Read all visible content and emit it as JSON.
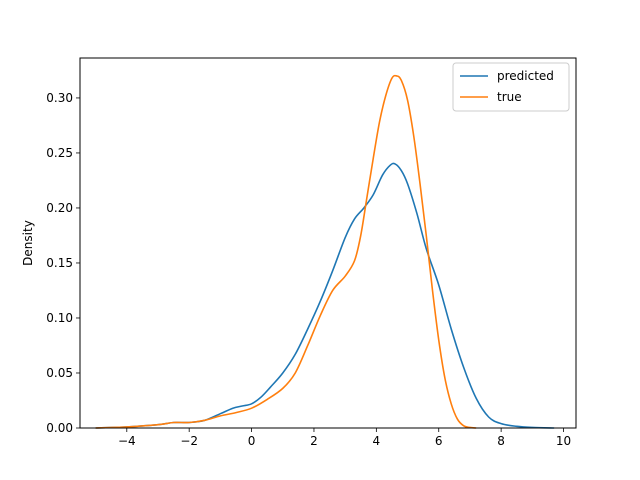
{
  "chart_data": {
    "type": "line",
    "title": "",
    "xlabel": "",
    "ylabel": "Density",
    "xlim": [
      -5.5,
      10.4
    ],
    "ylim": [
      0,
      0.3363
    ],
    "xticks": [
      -4,
      -2,
      0,
      2,
      4,
      6,
      8,
      10
    ],
    "xtick_labels": [
      "−4",
      "−2",
      "0",
      "2",
      "4",
      "6",
      "8",
      "10"
    ],
    "yticks": [
      0,
      0.05,
      0.1,
      0.15,
      0.2,
      0.25,
      0.3
    ],
    "ytick_labels": [
      "0.00",
      "0.05",
      "0.10",
      "0.15",
      "0.20",
      "0.25",
      "0.30"
    ],
    "grid": false,
    "legend": "top-right",
    "series": [
      {
        "name": "predicted",
        "color": "#1f77b4",
        "points": [
          [
            -5.0,
            0.0
          ],
          [
            -4.0,
            0.001
          ],
          [
            -3.0,
            0.003
          ],
          [
            -2.5,
            0.005
          ],
          [
            -2.0,
            0.005
          ],
          [
            -1.5,
            0.007
          ],
          [
            -1.0,
            0.013
          ],
          [
            -0.6,
            0.018
          ],
          [
            -0.3,
            0.02
          ],
          [
            0.0,
            0.022
          ],
          [
            0.3,
            0.028
          ],
          [
            0.6,
            0.037
          ],
          [
            1.0,
            0.05
          ],
          [
            1.4,
            0.067
          ],
          [
            1.8,
            0.09
          ],
          [
            2.2,
            0.115
          ],
          [
            2.6,
            0.143
          ],
          [
            3.0,
            0.173
          ],
          [
            3.3,
            0.19
          ],
          [
            3.6,
            0.2
          ],
          [
            3.9,
            0.212
          ],
          [
            4.2,
            0.23
          ],
          [
            4.45,
            0.239
          ],
          [
            4.6,
            0.24
          ],
          [
            4.8,
            0.234
          ],
          [
            5.0,
            0.222
          ],
          [
            5.3,
            0.195
          ],
          [
            5.6,
            0.163
          ],
          [
            6.0,
            0.13
          ],
          [
            6.4,
            0.09
          ],
          [
            6.8,
            0.055
          ],
          [
            7.2,
            0.027
          ],
          [
            7.6,
            0.01
          ],
          [
            8.0,
            0.004
          ],
          [
            8.5,
            0.0015
          ],
          [
            9.0,
            0.0005
          ],
          [
            9.7,
            0.0
          ]
        ]
      },
      {
        "name": "true",
        "color": "#ff7f0e",
        "points": [
          [
            -5.0,
            0.0
          ],
          [
            -4.0,
            0.001
          ],
          [
            -3.0,
            0.003
          ],
          [
            -2.5,
            0.005
          ],
          [
            -2.0,
            0.005
          ],
          [
            -1.5,
            0.007
          ],
          [
            -1.0,
            0.011
          ],
          [
            -0.5,
            0.014
          ],
          [
            0.0,
            0.018
          ],
          [
            0.5,
            0.026
          ],
          [
            1.0,
            0.036
          ],
          [
            1.4,
            0.05
          ],
          [
            1.8,
            0.075
          ],
          [
            2.2,
            0.102
          ],
          [
            2.6,
            0.125
          ],
          [
            3.0,
            0.138
          ],
          [
            3.3,
            0.152
          ],
          [
            3.5,
            0.175
          ],
          [
            3.7,
            0.21
          ],
          [
            3.9,
            0.245
          ],
          [
            4.1,
            0.278
          ],
          [
            4.3,
            0.302
          ],
          [
            4.5,
            0.318
          ],
          [
            4.65,
            0.32
          ],
          [
            4.8,
            0.316
          ],
          [
            5.0,
            0.298
          ],
          [
            5.2,
            0.265
          ],
          [
            5.4,
            0.222
          ],
          [
            5.6,
            0.175
          ],
          [
            5.8,
            0.125
          ],
          [
            6.0,
            0.08
          ],
          [
            6.2,
            0.045
          ],
          [
            6.4,
            0.022
          ],
          [
            6.6,
            0.008
          ],
          [
            6.8,
            0.002
          ],
          [
            7.0,
            0.0005
          ],
          [
            7.2,
            0.0
          ]
        ]
      }
    ]
  }
}
